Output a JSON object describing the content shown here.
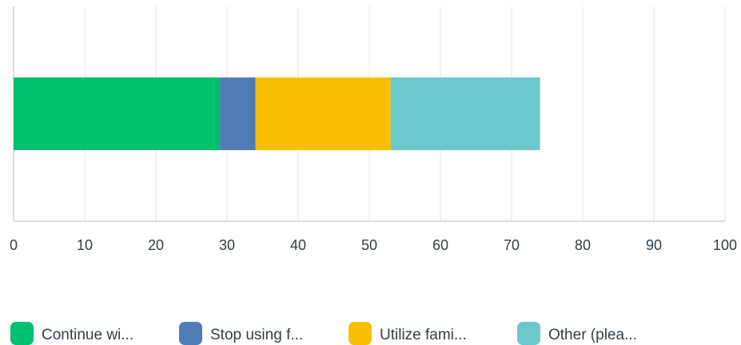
{
  "chart_data": {
    "type": "bar",
    "orientation": "horizontal",
    "stacked": true,
    "categories": [
      ""
    ],
    "series": [
      {
        "name": "Continue wi...",
        "values": [
          29
        ],
        "color": "#00bf6f"
      },
      {
        "name": "Stop using f...",
        "values": [
          5
        ],
        "color": "#507cb6"
      },
      {
        "name": "Utilize fami...",
        "values": [
          19
        ],
        "color": "#f9be00"
      },
      {
        "name": "Other (plea...",
        "values": [
          21
        ],
        "color": "#6bc8cd"
      }
    ],
    "xlim": [
      0,
      100
    ],
    "xticks": [
      "0",
      "10",
      "20",
      "30",
      "40",
      "50",
      "60",
      "70",
      "80",
      "90",
      "100"
    ],
    "grid": true,
    "legend_position": "bottom",
    "colors": {
      "grid": "#e5e5e5",
      "axis": "#d0d2d3",
      "text": "#333e48"
    }
  }
}
